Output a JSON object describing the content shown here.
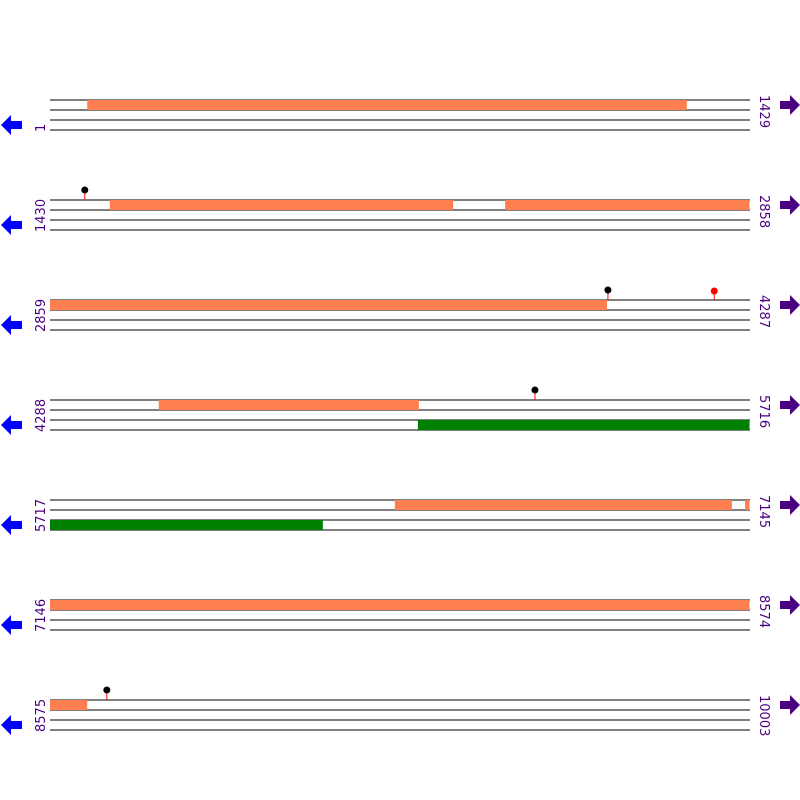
{
  "colors": {
    "track_line": "#000000",
    "forward_feature": "#ff7f50",
    "reverse_feature": "#008000",
    "left_arrow": "#0000ff",
    "right_arrow": "#4b0082",
    "label": "#4b0082",
    "marker_black": "#000000",
    "marker_red": "#ff0000",
    "marker_stem": "#ff0000"
  },
  "icons": {
    "left": "arrow-left-icon",
    "right": "arrow-right-icon"
  },
  "bp_per_row": 1429,
  "rows": [
    {
      "start": "1",
      "end": "1429",
      "start_bp": 1,
      "features": [
        {
          "track": 0,
          "from": 77,
          "to": 1301
        }
      ],
      "markers": []
    },
    {
      "start": "1430",
      "end": "2858",
      "start_bp": 1430,
      "features": [
        {
          "track": 0,
          "from": 1552,
          "to": 2253
        },
        {
          "track": 0,
          "from": 2359,
          "to": 2858
        }
      ],
      "markers": [
        {
          "pos": 1501,
          "color": "black"
        }
      ]
    },
    {
      "start": "2859",
      "end": "4287",
      "start_bp": 2859,
      "features": [
        {
          "track": 0,
          "from": 2859,
          "to": 3996
        }
      ],
      "markers": [
        {
          "pos": 3998,
          "color": "black"
        },
        {
          "pos": 4215,
          "color": "red"
        }
      ]
    },
    {
      "start": "4288",
      "end": "5716",
      "start_bp": 4288,
      "features": [
        {
          "track": 0,
          "from": 4510,
          "to": 5041
        },
        {
          "track": 2,
          "from": 5039,
          "to": 5716
        }
      ],
      "markers": [
        {
          "pos": 5278,
          "color": "black"
        }
      ]
    },
    {
      "start": "5717",
      "end": "7145",
      "start_bp": 5717,
      "features": [
        {
          "track": 0,
          "from": 6421,
          "to": 7109
        },
        {
          "track": 0,
          "from": 7136,
          "to": 7145
        },
        {
          "track": 2,
          "from": 5717,
          "to": 6274
        }
      ],
      "markers": []
    },
    {
      "start": "7146",
      "end": "8574",
      "start_bp": 7146,
      "features": [
        {
          "track": 0,
          "from": 7146,
          "to": 8574
        }
      ],
      "markers": []
    },
    {
      "start": "8575",
      "end": "10003",
      "start_bp": 8575,
      "features": [
        {
          "track": 0,
          "from": 8575,
          "to": 8651
        }
      ],
      "markers": [
        {
          "pos": 8691,
          "color": "black"
        }
      ]
    }
  ]
}
